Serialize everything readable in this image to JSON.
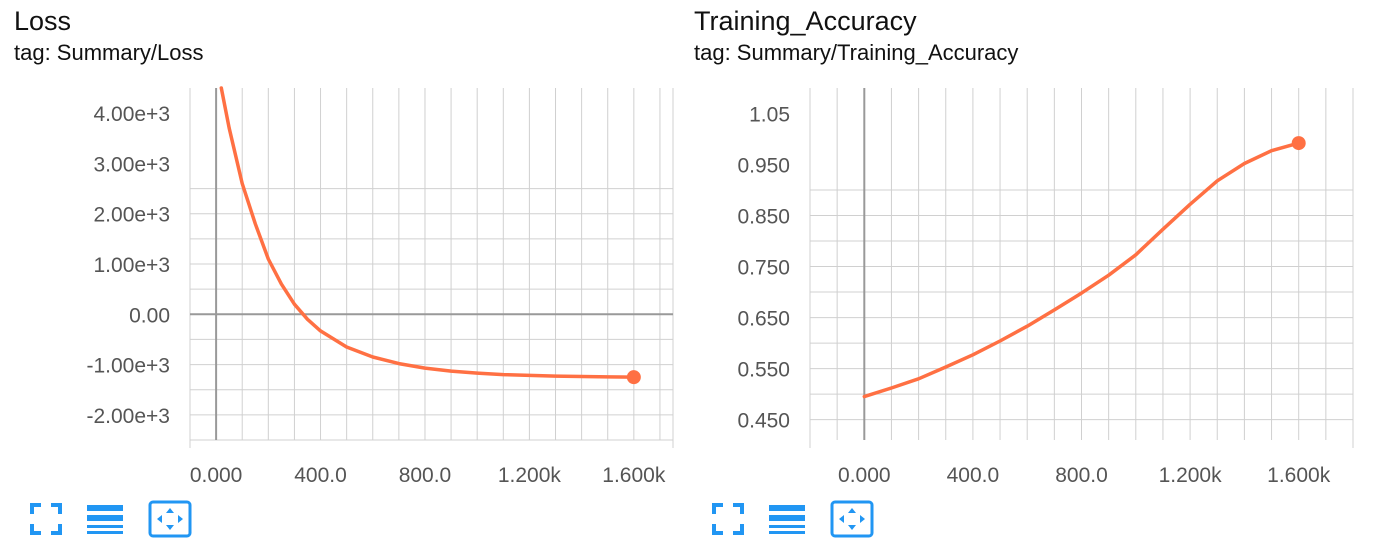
{
  "charts": [
    {
      "title": "Loss",
      "tag": "tag: Summary/Loss",
      "controls": [
        "fullscreen-icon",
        "list-icon",
        "fit-domain-icon"
      ]
    },
    {
      "title": "Training_Accuracy",
      "tag": "tag: Summary/Training_Accuracy",
      "controls": [
        "fullscreen-icon",
        "list-icon",
        "fit-domain-icon"
      ]
    }
  ],
  "colors": {
    "series": "#ff7043",
    "grid": "#d0d0d0",
    "axis": "#999999",
    "icon": "#2196f3"
  },
  "chart_data": [
    {
      "type": "line",
      "title": "Loss",
      "xlabel": "",
      "ylabel": "",
      "xlim": [
        -100,
        1750
      ],
      "ylim": [
        -2500,
        4500
      ],
      "x_ticks": [
        0,
        400,
        800,
        1200,
        1600
      ],
      "x_tick_labels": [
        "0.000",
        "400.0",
        "800.0",
        "1.200k",
        "1.600k"
      ],
      "y_ticks": [
        4000,
        3000,
        2000,
        1000,
        0,
        -1000,
        -2000
      ],
      "y_tick_labels": [
        "4.00e+3",
        "3.00e+3",
        "2.00e+3",
        "1.00e+3",
        "0.00",
        "-1.00e+3",
        "-2.00e+3"
      ],
      "grid": true,
      "series": [
        {
          "x": [
            20,
            50,
            100,
            150,
            200,
            250,
            300,
            350,
            400,
            500,
            600,
            700,
            800,
            900,
            1000,
            1100,
            1200,
            1300,
            1400,
            1500,
            1600
          ],
          "y": [
            4500,
            3700,
            2600,
            1800,
            1100,
            600,
            200,
            -100,
            -330,
            -650,
            -850,
            -980,
            -1070,
            -1130,
            -1170,
            -1200,
            -1215,
            -1230,
            -1238,
            -1245,
            -1250
          ]
        }
      ],
      "last_point": {
        "x": 1600,
        "y": -1250
      }
    },
    {
      "type": "line",
      "title": "Training_Accuracy",
      "xlabel": "",
      "ylabel": "",
      "xlim": [
        -200,
        1800
      ],
      "ylim": [
        0.41,
        1.1
      ],
      "x_ticks": [
        0,
        400,
        800,
        1200,
        1600
      ],
      "x_tick_labels": [
        "0.000",
        "400.0",
        "800.0",
        "1.200k",
        "1.600k"
      ],
      "y_ticks": [
        1.05,
        0.95,
        0.85,
        0.75,
        0.65,
        0.55,
        0.45
      ],
      "y_tick_labels": [
        "1.05",
        "0.950",
        "0.850",
        "0.750",
        "0.650",
        "0.550",
        "0.450"
      ],
      "grid": true,
      "series": [
        {
          "x": [
            0,
            100,
            200,
            300,
            400,
            500,
            600,
            700,
            800,
            900,
            1000,
            1100,
            1200,
            1300,
            1400,
            1500,
            1600
          ],
          "y": [
            0.495,
            0.512,
            0.53,
            0.553,
            0.577,
            0.604,
            0.633,
            0.665,
            0.698,
            0.733,
            0.773,
            0.823,
            0.872,
            0.918,
            0.952,
            0.977,
            0.992
          ]
        }
      ],
      "last_point": {
        "x": 1600,
        "y": 0.992
      }
    }
  ]
}
